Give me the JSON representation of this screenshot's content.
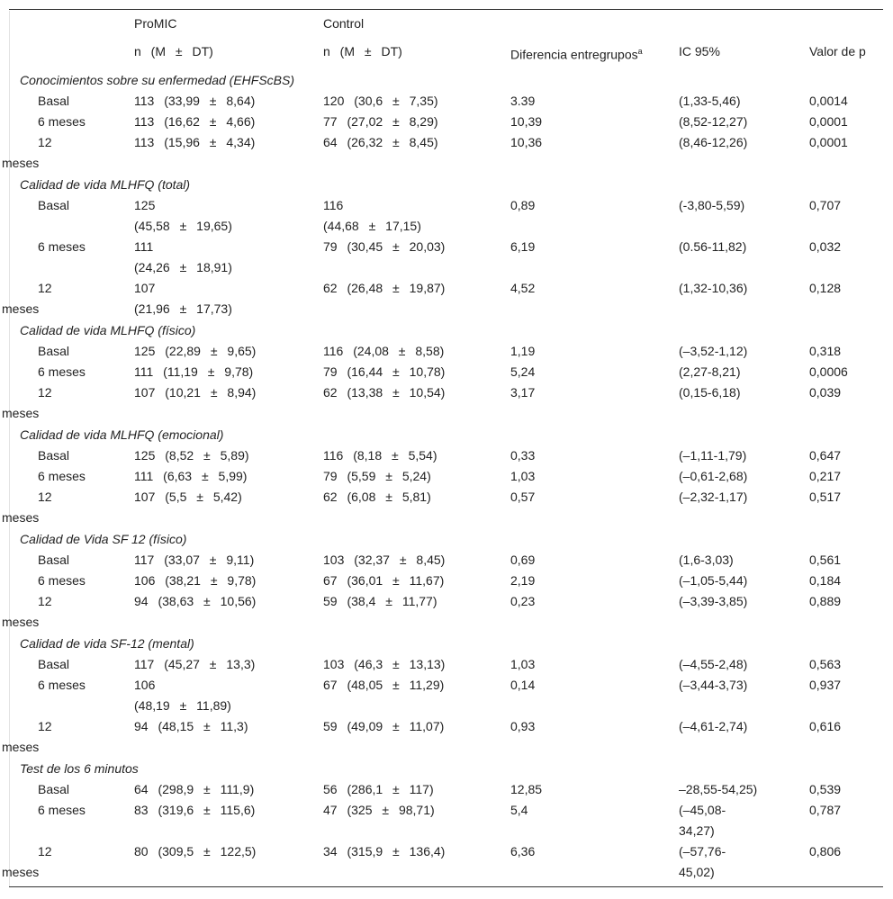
{
  "header": {
    "group1": "ProMIC",
    "group2": "Control",
    "group1_sub": "n (M ± DT)",
    "group2_sub": "n (M ± DT)",
    "diff": "Diferencia entregrupos",
    "diff_sup": "a",
    "ci": "IC 95%",
    "p": "Valor de p"
  },
  "sections": [
    {
      "title": "Conocimientos sobre su enfermedad (EHFScBS)",
      "rows": [
        {
          "label": "Basal",
          "promic": "113 (33,99 ± 8,64)",
          "control": "120 (30,6 ± 7,35)",
          "diff": "3.39",
          "ci": "(1,33-5,46)",
          "p": "0,0014"
        },
        {
          "label": "6 meses",
          "promic": "113 (16,62 ± 4,66)",
          "control": "77 (27,02 ± 8,29)",
          "diff": "10,39",
          "ci": "(8,52-12,27)",
          "p": "0,0001"
        },
        {
          "label": "12 meses",
          "promic": "113 (15,96 ± 4,34)",
          "control": "64 (26,32 ± 8,45)",
          "diff": "10,36",
          "ci": "(8,46-12,26)",
          "p": "0,0001"
        }
      ]
    },
    {
      "title": "Calidad de vida MLHFQ (total)",
      "rows": [
        {
          "label": "Basal",
          "promic": "125 (45,58 ± 19,65)",
          "control": "116 (44,68 ± 17,15)",
          "diff": "0,89",
          "ci": "(-3,80-5,59)",
          "p": "0,707"
        },
        {
          "label": "6 meses",
          "promic": "111 (24,26 ± 18,91)",
          "control": "79 (30,45 ± 20,03)",
          "diff": "6,19",
          "ci": "(0.56-11,82)",
          "p": "0,032"
        },
        {
          "label": "12 meses",
          "promic": "107 (21,96 ± 17,73)",
          "control": "62 (26,48 ± 19,87)",
          "diff": "4,52",
          "ci": "(1,32-10,36)",
          "p": "0,128"
        }
      ]
    },
    {
      "title": "Calidad de vida MLHFQ (físico)",
      "rows": [
        {
          "label": "Basal",
          "promic": "125 (22,89 ± 9,65)",
          "control": "116 (24,08 ± 8,58)",
          "diff": "1,19",
          "ci": "(–3,52-1,12)",
          "p": "0,318"
        },
        {
          "label": "6 meses",
          "promic": "111 (11,19 ± 9,78)",
          "control": "79 (16,44 ± 10,78)",
          "diff": "5,24",
          "ci": "(2,27-8,21)",
          "p": "0,0006"
        },
        {
          "label": "12 meses",
          "promic": "107 (10,21 ± 8,94)",
          "control": "62 (13,38 ± 10,54)",
          "diff": "3,17",
          "ci": "(0,15-6,18)",
          "p": "0,039"
        }
      ]
    },
    {
      "title": "Calidad de vida MLHFQ (emocional)",
      "rows": [
        {
          "label": "Basal",
          "promic": "125 (8,52 ± 5,89)",
          "control": "116 (8,18 ± 5,54)",
          "diff": "0,33",
          "ci": "(–1,11-1,79)",
          "p": "0,647"
        },
        {
          "label": "6 meses",
          "promic": "111 (6,63 ± 5,99)",
          "control": "79 (5,59 ± 5,24)",
          "diff": "1,03",
          "ci": "(–0,61-2,68)",
          "p": "0,217"
        },
        {
          "label": "12 meses",
          "promic": "107 (5,5 ± 5,42)",
          "control": "62 (6,08 ± 5,81)",
          "diff": "0,57",
          "ci": "(–2,32-1,17)",
          "p": "0,517"
        }
      ]
    },
    {
      "title": "Calidad de Vida SF 12 (físico)",
      "rows": [
        {
          "label": "Basal",
          "promic": "117 (33,07 ± 9,11)",
          "control": "103 (32,37 ± 8,45)",
          "diff": "0,69",
          "ci": "(1,6-3,03)",
          "p": "0,561"
        },
        {
          "label": "6 meses",
          "promic": "106 (38,21 ± 9,78)",
          "control": "67 (36,01 ± 11,67)",
          "diff": "2,19",
          "ci": "(–1,05-5,44)",
          "p": "0,184"
        },
        {
          "label": "12 meses",
          "promic": "94 (38,63 ± 10,56)",
          "control": "59 (38,4 ± 11,77)",
          "diff": "0,23",
          "ci": "(–3,39-3,85)",
          "p": "0,889"
        }
      ]
    },
    {
      "title": "Calidad de vida SF-12 (mental)",
      "rows": [
        {
          "label": "Basal",
          "promic": "117 (45,27 ± 13,3)",
          "control": "103 (46,3 ± 13,13)",
          "diff": "1,03",
          "ci": "(–4,55-2,48)",
          "p": "0,563"
        },
        {
          "label": "6 meses",
          "promic": "106 (48,19 ± 11,89)",
          "control": "67 (48,05 ± 11,29)",
          "diff": "0,14",
          "ci": "(–3,44-3,73)",
          "p": "0,937"
        },
        {
          "label": "12 meses",
          "promic": "94 (48,15 ± 11,3)",
          "control": "59 (49,09 ± 11,07)",
          "diff": "0,93",
          "ci": "(–4,61-2,74)",
          "p": "0,616"
        }
      ]
    },
    {
      "title": "Test de los 6 minutos",
      "rows": [
        {
          "label": "Basal",
          "promic": "64 (298,9 ± 111,9)",
          "control": "56 (286,1 ± 117)",
          "diff": "12,85",
          "ci": "–28,55-54,25)",
          "p": "0,539"
        },
        {
          "label": "6 meses",
          "promic": "83 (319,6 ± 115,6)",
          "control": "47 (325 ± 98,71)",
          "diff": "5,4",
          "ci": "(–45,08-34,27)",
          "p": "0,787"
        },
        {
          "label": "12 meses",
          "promic": "80 (309,5 ± 122,5)",
          "control": "34 (315,9 ± 136,4)",
          "diff": "6,36",
          "ci": "(–57,76-45,02)",
          "p": "0,806"
        }
      ]
    }
  ]
}
